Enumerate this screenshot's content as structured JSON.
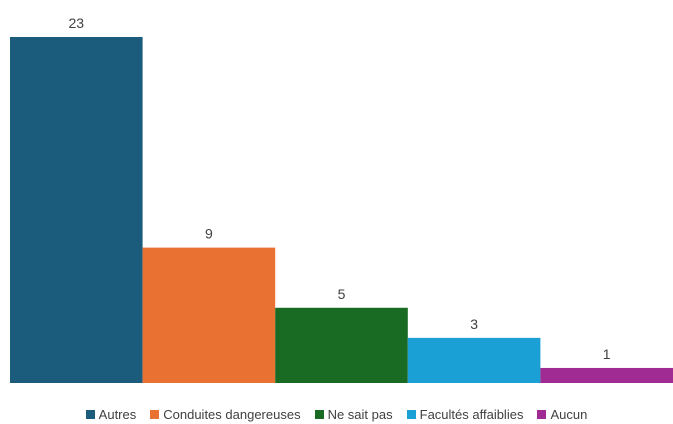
{
  "chart_data": {
    "type": "bar",
    "categories": [
      "Autres",
      "Conduites dangereuses",
      "Ne sait pas",
      "Facultés affaiblies",
      "Aucun"
    ],
    "values": [
      23,
      9,
      5,
      3,
      1
    ],
    "colors": [
      "#1b5c7d",
      "#e97132",
      "#196b24",
      "#1ba0d6",
      "#a02b93"
    ],
    "data_labels": [
      "23",
      "9",
      "5",
      "3",
      "1"
    ],
    "title": "",
    "xlabel": "",
    "ylabel": "",
    "ylim": [
      0,
      23
    ],
    "grid": false,
    "legend": "bottom"
  }
}
